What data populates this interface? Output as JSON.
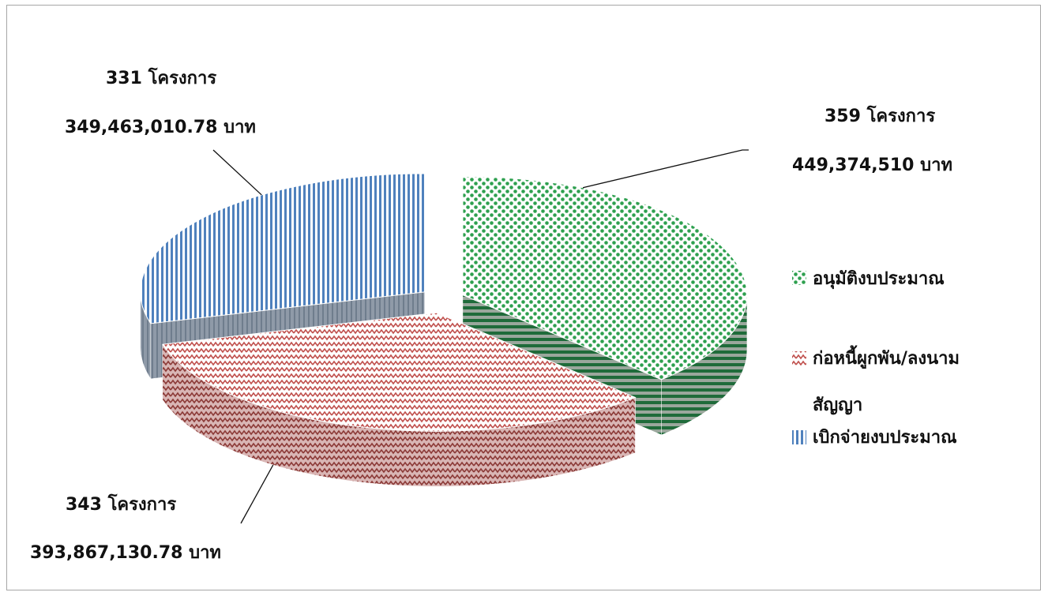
{
  "chart_data": {
    "type": "pie",
    "style": "3d-exploded",
    "categories": [
      "อนุมัติงบประมาณ",
      "ก่อหนี้ผูกพัน/ลงนามสัญญา",
      "เบิกจ่ายงบประมาณ"
    ],
    "values": [
      449374510,
      393867130.78,
      349463010.78
    ],
    "projects": [
      359,
      343,
      331
    ],
    "data_labels": [
      {
        "line1": "359 โครงการ",
        "line2": "449,374,510 บาท"
      },
      {
        "line1": "343 โครงการ",
        "line2": "393,867,130.78 บาท"
      },
      {
        "line1": "331 โครงการ",
        "line2": "349,463,010.78 บาท"
      }
    ],
    "legend": {
      "position": "right",
      "entries": [
        {
          "lines": [
            "อนุมัติงบประมาณ"
          ],
          "color": "#2ea04f",
          "pattern": "checker"
        },
        {
          "lines": [
            "ก่อหนี้ผูกพัน/ลงนาม",
            "สัญญา"
          ],
          "color": "#c0504d",
          "pattern": "zigzag"
        },
        {
          "lines": [
            "เบิกจ่ายงบประมาณ"
          ],
          "color": "#4f81bd",
          "pattern": "vertical-stripes"
        }
      ]
    },
    "colors": [
      "#2ea04f",
      "#c0504d",
      "#4f81bd"
    ]
  }
}
